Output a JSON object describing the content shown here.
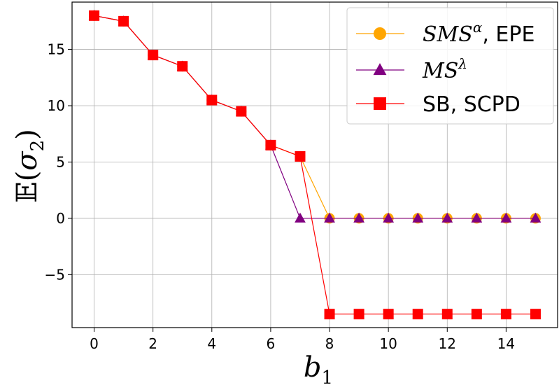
{
  "chart_data": {
    "type": "line",
    "title": "",
    "xlabel": "b",
    "xlabel_sub": "1",
    "ylabel_prefix": "𝔼(",
    "ylabel_sigma": "σ",
    "ylabel_sub": "2",
    "ylabel_suffix": ")",
    "xlim": [
      -0.75,
      15.75
    ],
    "ylim": [
      -9.7,
      19.2
    ],
    "xticks": [
      0,
      2,
      4,
      6,
      8,
      10,
      12,
      14
    ],
    "xtick_labels": [
      "0",
      "2",
      "4",
      "6",
      "8",
      "10",
      "12",
      "14"
    ],
    "yticks": [
      -5,
      0,
      5,
      10,
      15
    ],
    "ytick_labels": [
      "−5",
      "0",
      "5",
      "10",
      "15"
    ],
    "grid": true,
    "legend_position": "top-right",
    "x": [
      0,
      1,
      2,
      3,
      4,
      5,
      6,
      7,
      8,
      9,
      10,
      11,
      12,
      13,
      14,
      15
    ],
    "series": [
      {
        "name_italic": "SMS",
        "name_sup": "α",
        "name_rest": ", EPE",
        "color": "#FFA500",
        "marker": "circle",
        "values": [
          18,
          17.5,
          14.5,
          13.5,
          10.5,
          9.5,
          6.5,
          5.5,
          0,
          0,
          0,
          0,
          0,
          0,
          0,
          0
        ]
      },
      {
        "name_italic": "MS",
        "name_sup": "λ",
        "name_rest": "",
        "color": "#800080",
        "marker": "triangle",
        "values": [
          18,
          17.5,
          14.5,
          13.5,
          10.5,
          9.5,
          6.5,
          0,
          0,
          0,
          0,
          0,
          0,
          0,
          0,
          0
        ]
      },
      {
        "name_italic": "",
        "name_sup": "",
        "name_rest": "SB, SCPD",
        "color": "#FF0000",
        "marker": "square",
        "values": [
          18,
          17.5,
          14.5,
          13.5,
          10.5,
          9.5,
          6.5,
          5.5,
          -8.5,
          -8.5,
          -8.5,
          -8.5,
          -8.5,
          -8.5,
          -8.5,
          -8.5
        ]
      }
    ]
  }
}
